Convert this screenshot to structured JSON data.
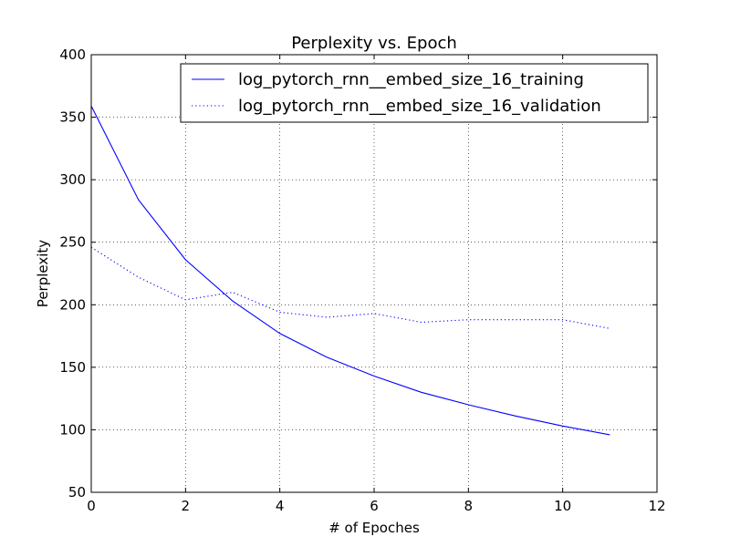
{
  "chart_data": {
    "type": "line",
    "title": "Perplexity vs. Epoch",
    "xlabel": "# of Epoches",
    "ylabel": "Perplexity",
    "xlim": [
      0,
      12
    ],
    "ylim": [
      50,
      400
    ],
    "xticks": [
      0,
      2,
      4,
      6,
      8,
      10,
      12
    ],
    "yticks": [
      50,
      100,
      150,
      200,
      250,
      300,
      350,
      400
    ],
    "grid": true,
    "legend_position": "top-right",
    "series": [
      {
        "name": "log_pytorch_rnn__embed_size_16_training",
        "style": "solid",
        "color": "#0000ff",
        "x": [
          0,
          1,
          2,
          3,
          4,
          5,
          6,
          7,
          8,
          9,
          10,
          11
        ],
        "y": [
          359,
          284,
          236,
          203,
          177,
          158,
          143,
          130,
          120,
          111,
          103,
          96
        ]
      },
      {
        "name": "log_pytorch_rnn__embed_size_16_validation",
        "style": "dotted",
        "color": "#0000ff",
        "x": [
          0,
          1,
          2,
          3,
          4,
          5,
          6,
          7,
          8,
          9,
          10,
          11
        ],
        "y": [
          246,
          222,
          204,
          210,
          194,
          190,
          193,
          186,
          188,
          188,
          188,
          181
        ]
      }
    ]
  }
}
